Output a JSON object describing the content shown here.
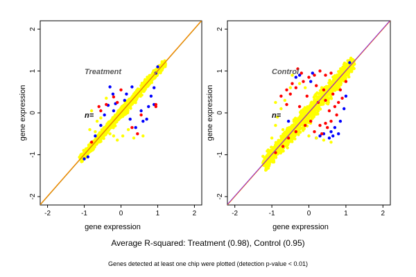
{
  "figure": {
    "summary": "Average R-squared: Treatment (0.98), Control (0.95)",
    "footnote": "Genes detected at least one chip were plotted (detection p-value < 0.01)"
  },
  "chart_data": [
    {
      "type": "scatter",
      "title": "Treatment",
      "n_label": "n=",
      "xlabel": "gene expression",
      "ylabel": "gene expression",
      "xlim": [
        -2.2,
        2.2
      ],
      "ylim": [
        -2.2,
        2.2
      ],
      "xticks": [
        "-2",
        "-1",
        "0",
        "1",
        "2"
      ],
      "yticks": [
        "-2",
        "-1",
        "0",
        "1",
        "2"
      ],
      "grid": false,
      "point_cloud": {
        "x_range": [
          -1.1,
          1.2
        ],
        "y_range": [
          -1.15,
          1.15
        ],
        "spread": 0.12
      },
      "series": [
        {
          "color": "#0000ff",
          "points": [
            [
              -0.3,
              0.62
            ],
            [
              -0.22,
              0.45
            ],
            [
              -0.35,
              0.18
            ],
            [
              -0.15,
              0.22
            ],
            [
              0.1,
              0.3
            ],
            [
              0.15,
              0.45
            ],
            [
              0.55,
              0.05
            ],
            [
              0.75,
              0.15
            ],
            [
              0.82,
              0.4
            ],
            [
              0.9,
              0.6
            ],
            [
              0.4,
              -0.35
            ],
            [
              0.6,
              -0.2
            ],
            [
              0.7,
              -0.15
            ],
            [
              -0.45,
              -0.05
            ],
            [
              -0.7,
              -0.55
            ],
            [
              -1.0,
              -1.1
            ],
            [
              -0.9,
              -1.05
            ],
            [
              0.95,
              0.95
            ],
            [
              1.0,
              1.1
            ],
            [
              -0.2,
              0.05
            ],
            [
              0.3,
              0.62
            ],
            [
              -0.55,
              -0.3
            ],
            [
              0.25,
              -0.15
            ],
            [
              0.9,
              0.2
            ]
          ]
        },
        {
          "color": "#ff0000",
          "points": [
            [
              -0.55,
              0.05
            ],
            [
              -0.6,
              0.15
            ],
            [
              -0.4,
              0.2
            ],
            [
              -0.2,
              0.38
            ],
            [
              0.0,
              0.55
            ],
            [
              0.95,
              0.2
            ],
            [
              0.95,
              0.15
            ],
            [
              0.55,
              -0.05
            ],
            [
              -0.8,
              -0.7
            ],
            [
              0.45,
              -0.5
            ],
            [
              0.3,
              -0.35
            ],
            [
              -0.1,
              0.25
            ]
          ]
        },
        {
          "color": "#ffff00",
          "points": [
            [
              -0.7,
              -0.45
            ],
            [
              -0.5,
              -0.6
            ],
            [
              -0.3,
              -0.5
            ],
            [
              -0.1,
              -0.65
            ],
            [
              -0.85,
              -0.4
            ],
            [
              -0.65,
              -0.2
            ],
            [
              -0.55,
              -0.12
            ],
            [
              -0.2,
              -0.55
            ],
            [
              0.05,
              -0.55
            ],
            [
              0.35,
              -0.6
            ],
            [
              -0.8,
              0.05
            ],
            [
              -0.4,
              0.35
            ],
            [
              0.2,
              -0.4
            ],
            [
              0.6,
              -0.55
            ]
          ]
        }
      ],
      "reference_lines": [
        {
          "kind": "identity",
          "color": "#b8860b"
        },
        {
          "kind": "fit",
          "color": "#ff8c00"
        }
      ]
    },
    {
      "type": "scatter",
      "title": "Control",
      "n_label": "n=",
      "xlabel": "gene expression",
      "ylabel": "gene expression",
      "xlim": [
        -2.2,
        2.2
      ],
      "ylim": [
        -2.2,
        2.2
      ],
      "xticks": [
        "-2",
        "-1",
        "0",
        "1",
        "2"
      ],
      "yticks": [
        "-2",
        "-1",
        "0",
        "1",
        "2"
      ],
      "grid": false,
      "point_cloud": {
        "x_range": [
          -1.2,
          1.2
        ],
        "y_range": [
          -1.15,
          1.2
        ],
        "spread": 0.22
      },
      "series": [
        {
          "color": "#0000ff",
          "points": [
            [
              -0.35,
              0.85
            ],
            [
              -0.25,
              0.9
            ],
            [
              0.1,
              0.95
            ],
            [
              0.05,
              0.75
            ],
            [
              0.4,
              -0.5
            ],
            [
              0.6,
              -0.45
            ],
            [
              0.7,
              -0.35
            ],
            [
              0.85,
              -0.2
            ],
            [
              0.55,
              -0.6
            ],
            [
              0.3,
              -0.55
            ],
            [
              1.0,
              0.4
            ],
            [
              0.95,
              0.1
            ],
            [
              1.1,
              1.2
            ],
            [
              0.2,
              -0.6
            ],
            [
              -0.55,
              -0.2
            ],
            [
              0.8,
              -0.5
            ],
            [
              0.65,
              -0.55
            ]
          ]
        },
        {
          "color": "#ff0000",
          "points": [
            [
              -0.3,
              1.05
            ],
            [
              -0.2,
              0.95
            ],
            [
              -0.45,
              0.7
            ],
            [
              -0.6,
              0.55
            ],
            [
              -0.75,
              0.4
            ],
            [
              -0.5,
              0.45
            ],
            [
              -0.35,
              0.6
            ],
            [
              -0.15,
              0.75
            ],
            [
              0.0,
              0.85
            ],
            [
              0.15,
              0.9
            ],
            [
              0.3,
              1.0
            ],
            [
              0.45,
              0.9
            ],
            [
              0.6,
              0.95
            ],
            [
              0.2,
              0.65
            ],
            [
              0.45,
              0.3
            ],
            [
              0.55,
              0.05
            ],
            [
              0.7,
              0.15
            ],
            [
              0.8,
              0.25
            ],
            [
              0.9,
              0.35
            ],
            [
              0.3,
              -0.3
            ],
            [
              0.45,
              -0.25
            ],
            [
              0.6,
              -0.2
            ],
            [
              0.75,
              -0.05
            ],
            [
              0.15,
              -0.45
            ],
            [
              0.35,
              -0.5
            ],
            [
              0.5,
              -0.35
            ],
            [
              -0.1,
              -0.3
            ],
            [
              0.05,
              -0.2
            ],
            [
              -0.35,
              -0.45
            ],
            [
              -0.55,
              -0.6
            ],
            [
              -0.7,
              -0.8
            ],
            [
              -0.9,
              -0.95
            ],
            [
              0.85,
              0.55
            ],
            [
              1.0,
              0.75
            ],
            [
              -0.05,
              0.4
            ],
            [
              -0.6,
              0.2
            ],
            [
              -0.25,
              0.15
            ],
            [
              0.4,
              0.55
            ],
            [
              0.25,
              0.25
            ],
            [
              0.65,
              0.45
            ]
          ]
        },
        {
          "color": "#ffff00",
          "points": [
            [
              -0.9,
              0.25
            ],
            [
              -0.75,
              0.1
            ],
            [
              -0.65,
              0.3
            ],
            [
              -0.85,
              -0.1
            ],
            [
              -0.45,
              0.9
            ],
            [
              -0.25,
              0.7
            ],
            [
              -0.1,
              0.6
            ],
            [
              0.2,
              -0.6
            ],
            [
              0.4,
              -0.65
            ],
            [
              0.6,
              -0.7
            ],
            [
              -1.0,
              -0.6
            ],
            [
              -0.9,
              -0.3
            ],
            [
              0.75,
              0.65
            ],
            [
              -0.5,
              0.6
            ],
            [
              -0.7,
              -0.4
            ],
            [
              0.0,
              -0.55
            ]
          ]
        }
      ],
      "reference_lines": [
        {
          "kind": "identity",
          "color": "#ff7f00"
        },
        {
          "kind": "fit",
          "color": "#8a2be2"
        }
      ]
    }
  ]
}
